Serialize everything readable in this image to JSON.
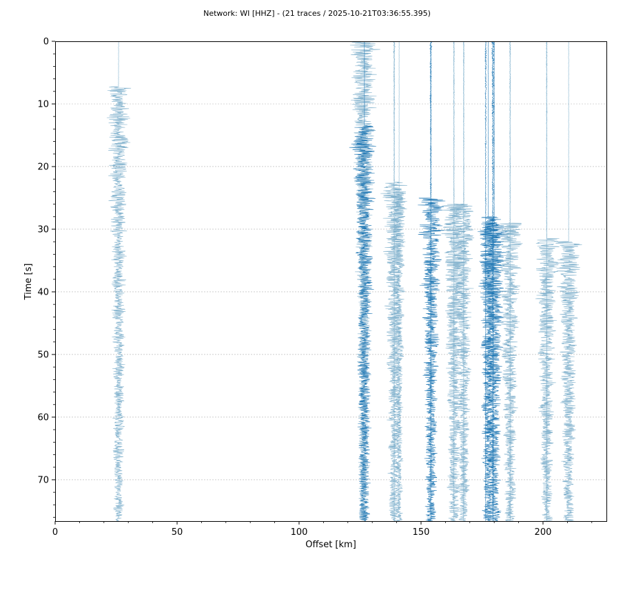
{
  "chart_data": {
    "type": "section",
    "title": "Network: WI [HHZ] - (21 traces / 2025-10-21T03:36:55.395)",
    "xlabel": "Offset [km]",
    "ylabel": "Time [s]",
    "xlim": [
      0,
      226
    ],
    "ylim": [
      76.6,
      0
    ],
    "y_inverted": true,
    "grid": true,
    "x_ticks": [
      "0",
      "50",
      "100",
      "150",
      "200"
    ],
    "y_ticks": [
      "0",
      "10",
      "20",
      "30",
      "40",
      "50",
      "60",
      "70"
    ],
    "colors": {
      "dark_trace": "#1f77b4",
      "light_trace": "#7fb0cc",
      "grid": "#b0b0b0"
    },
    "series": [
      {
        "offset_km": 26,
        "onset_s": 7.2,
        "peak_amp_km": 6.5,
        "shade": "light",
        "seed": 11
      },
      {
        "offset_km": 126.5,
        "onset_s": 0,
        "peak_amp_km": 7.5,
        "shade": "light",
        "seed": 23
      },
      {
        "offset_km": 126.8,
        "onset_s": 13.5,
        "peak_amp_km": 7.0,
        "shade": "dark",
        "seed": 37
      },
      {
        "offset_km": 139,
        "onset_s": 22.5,
        "peak_amp_km": 6.5,
        "shade": "light",
        "seed": 41
      },
      {
        "offset_km": 141,
        "onset_s": 24.0,
        "peak_amp_km": 4.0,
        "shade": "light",
        "seed": 53
      },
      {
        "offset_km": 154,
        "onset_s": 25.0,
        "peak_amp_km": 6.5,
        "shade": "dark",
        "seed": 67
      },
      {
        "offset_km": 163.5,
        "onset_s": 26.0,
        "peak_amp_km": 7.0,
        "shade": "light",
        "seed": 71
      },
      {
        "offset_km": 167.5,
        "onset_s": 26.0,
        "peak_amp_km": 6.0,
        "shade": "light",
        "seed": 83
      },
      {
        "offset_km": 177.5,
        "onset_s": 28.0,
        "peak_amp_km": 6.0,
        "shade": "dark",
        "seed": 97
      },
      {
        "offset_km": 180,
        "onset_s": 29.0,
        "peak_amp_km": 7.0,
        "shade": "dark",
        "seed": 101
      },
      {
        "offset_km": 186.5,
        "onset_s": 29.0,
        "peak_amp_km": 6.5,
        "shade": "light",
        "seed": 113
      },
      {
        "offset_km": 201.5,
        "onset_s": 31.5,
        "peak_amp_km": 6.5,
        "shade": "light",
        "seed": 127
      },
      {
        "offset_km": 210.5,
        "onset_s": 32.0,
        "peak_amp_km": 6.5,
        "shade": "light",
        "seed": 131
      },
      {
        "offset_km": 139.0,
        "onset_s": 0,
        "peak_amp_km": 0.4,
        "shade": "light",
        "seed": 139
      },
      {
        "offset_km": 154.0,
        "onset_s": 0,
        "peak_amp_km": 0.5,
        "shade": "dark",
        "seed": 149
      },
      {
        "offset_km": 163.5,
        "onset_s": 0,
        "peak_amp_km": 0.3,
        "shade": "light",
        "seed": 151
      },
      {
        "offset_km": 167.5,
        "onset_s": 0,
        "peak_amp_km": 0.3,
        "shade": "light",
        "seed": 157
      },
      {
        "offset_km": 176.5,
        "onset_s": 0,
        "peak_amp_km": 0.4,
        "shade": "dark",
        "seed": 163
      },
      {
        "offset_km": 179.5,
        "onset_s": 0,
        "peak_amp_km": 0.8,
        "shade": "dark",
        "seed": 167
      },
      {
        "offset_km": 186.5,
        "onset_s": 0,
        "peak_amp_km": 0.3,
        "shade": "light",
        "seed": 173
      },
      {
        "offset_km": 201.5,
        "onset_s": 0,
        "peak_amp_km": 0.3,
        "shade": "light",
        "seed": 179
      }
    ]
  }
}
